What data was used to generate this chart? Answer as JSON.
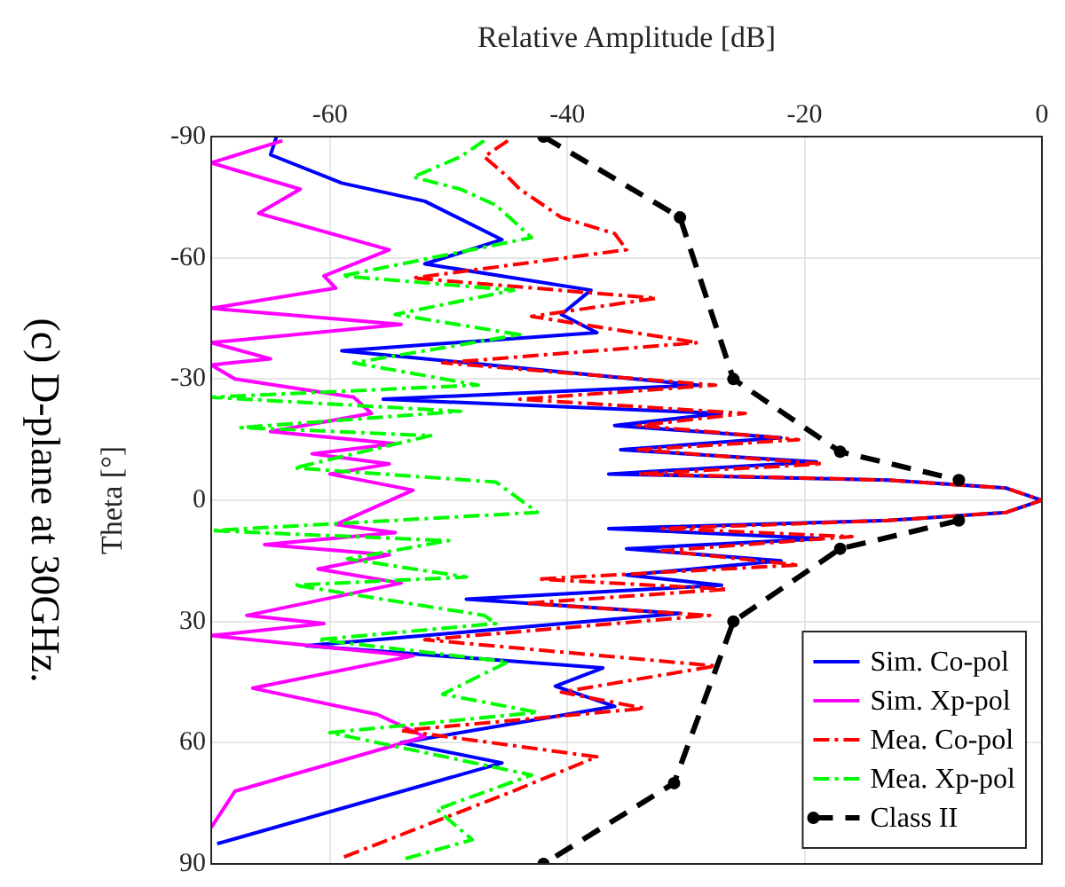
{
  "chart_data": {
    "type": "line",
    "orientation": "horizontal",
    "xlabel": "Relative Amplitude [dB]",
    "ylabel": "Theta [°]",
    "annotations": [
      "(c) D-plane at 30GHz."
    ],
    "xlim": [
      -70,
      0
    ],
    "xticks": [
      -60,
      -40,
      -20,
      0
    ],
    "ylim": [
      90,
      -90
    ],
    "yticks": [
      -90,
      -60,
      -30,
      0,
      30,
      60,
      90
    ],
    "grid": true,
    "legend": "bottom right",
    "series": [
      {
        "name": "Sim. Co-pol",
        "color": "#0000ff",
        "line_style": "solid",
        "marker": "none",
        "x": [
          -90,
          -85.5,
          -78.5,
          -74,
          -64.5,
          -58.5,
          -52,
          -46,
          -41.5,
          -37,
          -28.5,
          -25,
          -21.5,
          -18.5,
          -15.5,
          -12.5,
          -9.5,
          -6.5,
          -5,
          -3,
          0,
          3,
          5,
          7,
          9.5,
          12,
          15,
          18.5,
          21,
          24.5,
          28,
          36,
          41.5,
          46,
          51,
          60,
          65,
          85
        ],
        "values": [
          -64.5,
          -65,
          -59,
          -52,
          -45.5,
          -52,
          -38,
          -40.5,
          -37.5,
          -59,
          -29,
          -55.5,
          -27,
          -36,
          -22,
          -35.5,
          -19,
          -36.5,
          -13,
          -3,
          0,
          -3,
          -13,
          -36.5,
          -18.5,
          -35,
          -22,
          -35,
          -27,
          -48.5,
          -30.5,
          -62,
          -37,
          -41,
          -36,
          -54,
          -45.5,
          -69.5
        ]
      },
      {
        "name": "Sim. Xp-pol",
        "color": "#ff00ff",
        "line_style": "solid",
        "marker": "none",
        "x": [
          -89,
          -83.5,
          -77,
          -71,
          -62,
          -55.5,
          -52.5,
          -47.5,
          -43.5,
          -39,
          -35,
          -33.5,
          -30,
          -25.5,
          -21.5,
          -17,
          -14,
          -11.5,
          -9,
          -6.5,
          -2.5,
          6,
          8,
          11,
          13.5,
          17,
          20.5,
          28.5,
          30.5,
          33.5,
          38.5,
          46.5,
          53,
          58.5,
          72,
          81
        ],
        "values": [
          -64,
          -70,
          -62.5,
          -66,
          -55,
          -60.5,
          -59.5,
          -70,
          -54,
          -70,
          -65,
          -70,
          -68,
          -58,
          -56.5,
          -65,
          -54.5,
          -61.5,
          -55,
          -60,
          -53,
          -59.5,
          -54.5,
          -65.5,
          -55,
          -61,
          -54,
          -67,
          -60.5,
          -70,
          -53,
          -66.5,
          -56,
          -52,
          -68,
          -70
        ]
      },
      {
        "name": "Mea. Co-pol",
        "color": "#ff0000",
        "line_style": "dashdot",
        "marker": "none",
        "x": [
          -89,
          -85,
          -80,
          -77,
          -70,
          -66,
          -62,
          -55,
          -50,
          -45.5,
          -39,
          -34,
          -28.5,
          -25,
          -21.5,
          -18.5,
          -15,
          -12.5,
          -9,
          -6.5,
          -5,
          -3,
          0,
          3,
          5,
          7,
          9,
          12.5,
          16,
          19.5,
          22,
          25.5,
          28.5,
          34.5,
          41,
          47.5,
          51.5,
          57,
          63.5,
          72.5,
          80.5,
          88.5
        ],
        "values": [
          -45,
          -47,
          -45,
          -44,
          -40.5,
          -36,
          -35,
          -53,
          -32.5,
          -43,
          -29,
          -50.5,
          -27.5,
          -44,
          -25,
          -34,
          -20.5,
          -34,
          -18.5,
          -34,
          -13,
          -3,
          0,
          -3,
          -13,
          -32,
          -16,
          -32,
          -20.5,
          -42.5,
          -26.5,
          -43.5,
          -28,
          -52,
          -27.5,
          -40.5,
          -33.5,
          -54,
          -37.5,
          -45,
          -52,
          -59
        ]
      },
      {
        "name": "Mea. Xp-pol",
        "color": "#00ff00",
        "line_style": "dashdot",
        "marker": "none",
        "x": [
          -89,
          -85,
          -80,
          -77,
          -73,
          -65,
          -55.5,
          -52,
          -46,
          -41,
          -34,
          -28.5,
          -25.5,
          -22,
          -18,
          -16,
          -8,
          -4.5,
          3,
          7.5,
          10,
          14.5,
          19,
          21,
          28.5,
          30.5,
          34.5,
          40,
          48,
          52.5,
          57.5,
          68,
          76.5,
          84,
          89
        ],
        "values": [
          -47,
          -49,
          -53,
          -49,
          -46,
          -43,
          -59,
          -44.5,
          -54.5,
          -44,
          -58,
          -47.5,
          -70,
          -49,
          -67.5,
          -51.5,
          -63,
          -46,
          -42.5,
          -70,
          -50,
          -58.5,
          -48.5,
          -63,
          -47,
          -46,
          -61,
          -45,
          -50.5,
          -42.5,
          -60,
          -43,
          -51,
          -48,
          -54
        ]
      },
      {
        "name": "Class II",
        "color": "#000000",
        "line_style": "dashed",
        "marker": "circle",
        "x": [
          -90,
          -70,
          -30,
          -12,
          -5,
          0,
          5,
          12,
          30,
          70,
          90
        ],
        "values": [
          -42,
          -30.5,
          -26,
          -17,
          -7,
          null,
          -7,
          -17,
          -26,
          -31,
          -42
        ]
      }
    ]
  }
}
